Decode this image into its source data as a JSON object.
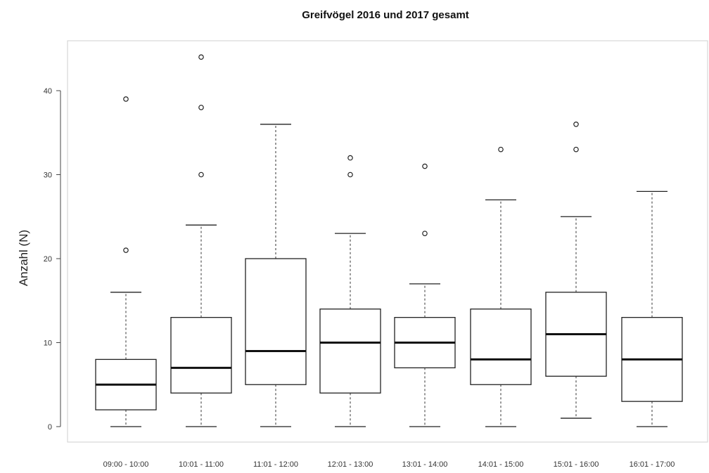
{
  "chart_data": {
    "type": "boxplot",
    "title": "Greifvögel 2016 und 2017 gesamt",
    "xlabel": "",
    "ylabel": "Anzahl (N)",
    "ylim": [
      -2,
      46
    ],
    "yticks": [
      0,
      10,
      20,
      30,
      40
    ],
    "grid": false,
    "categories": [
      "09:00 - 10:00",
      "10:01 - 11:00",
      "11:01 - 12:00",
      "12:01 - 13:00",
      "13:01 - 14:00",
      "14:01 - 15:00",
      "15:01 - 16:00",
      "16:01 - 17:00"
    ],
    "boxes": [
      {
        "whisker_low": 0,
        "q1": 2,
        "median": 5,
        "q3": 8,
        "whisker_high": 16,
        "outliers": [
          21,
          39
        ]
      },
      {
        "whisker_low": 0,
        "q1": 4,
        "median": 7,
        "q3": 13,
        "whisker_high": 24,
        "outliers": [
          30,
          38,
          44
        ]
      },
      {
        "whisker_low": 0,
        "q1": 5,
        "median": 9,
        "q3": 20,
        "whisker_high": 36,
        "outliers": []
      },
      {
        "whisker_low": 0,
        "q1": 4,
        "median": 10,
        "q3": 14,
        "whisker_high": 23,
        "outliers": [
          30,
          32
        ]
      },
      {
        "whisker_low": 0,
        "q1": 7,
        "median": 10,
        "q3": 13,
        "whisker_high": 17,
        "outliers": [
          23,
          31
        ]
      },
      {
        "whisker_low": 0,
        "q1": 5,
        "median": 8,
        "q3": 14,
        "whisker_high": 27,
        "outliers": [
          33
        ]
      },
      {
        "whisker_low": 1,
        "q1": 6,
        "median": 11,
        "q3": 16,
        "whisker_high": 25,
        "outliers": [
          33,
          36
        ]
      },
      {
        "whisker_low": 0,
        "q1": 3,
        "median": 8,
        "q3": 13,
        "whisker_high": 28,
        "outliers": []
      }
    ]
  }
}
